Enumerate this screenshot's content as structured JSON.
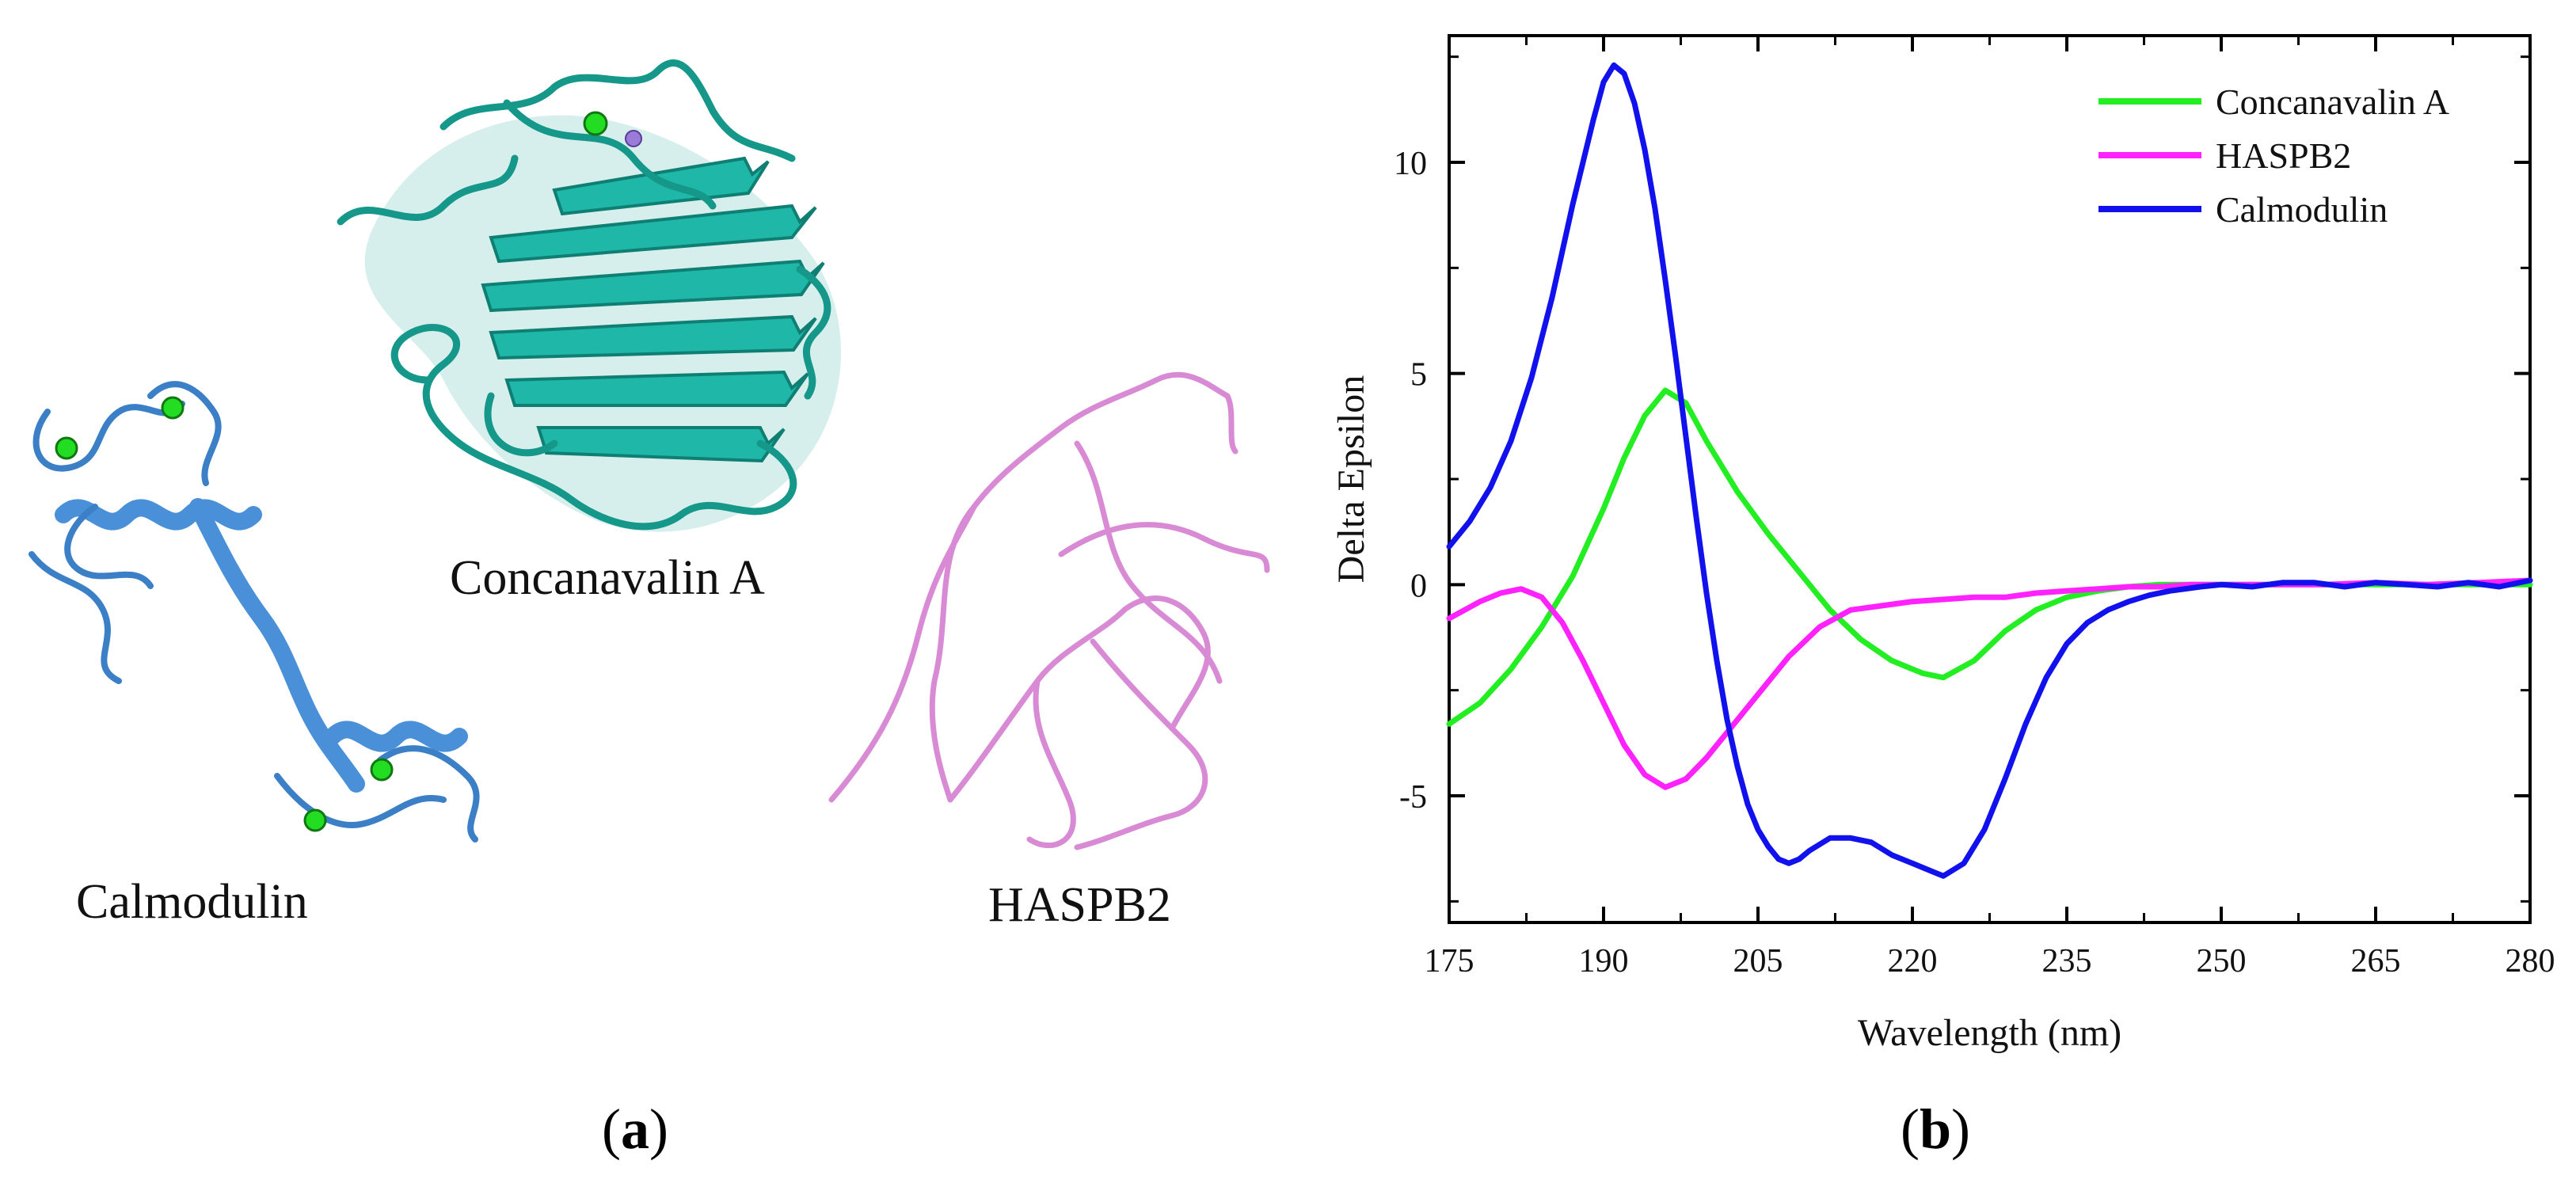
{
  "panel_a": {
    "label": "a",
    "structures": [
      {
        "name": "Concanavalin A",
        "color": "#1aa89a"
      },
      {
        "name": "Calmodulin",
        "color": "#4a90d9"
      },
      {
        "name": "HASPB2",
        "color": "#d98ad4"
      }
    ]
  },
  "panel_b": {
    "label": "b"
  },
  "chart_data": {
    "type": "line",
    "xlabel": "Wavelength (nm)",
    "ylabel": "Delta Epsilon",
    "xlim": [
      175,
      280
    ],
    "ylim": [
      -8,
      13
    ],
    "xticks": [
      175,
      190,
      205,
      220,
      235,
      250,
      265,
      280
    ],
    "yticks": [
      -5,
      0,
      5,
      10
    ],
    "legend": "top-right",
    "grid": false,
    "series": [
      {
        "name": "Concanavalin A",
        "color": "#22ee22",
        "x": [
          175,
          178,
          181,
          184,
          187,
          190,
          192,
          194,
          196,
          198,
          200,
          203,
          206,
          209,
          212,
          215,
          218,
          221,
          223,
          226,
          229,
          232,
          235,
          238,
          241,
          244,
          247,
          250,
          253,
          256,
          259,
          262,
          265,
          268,
          271,
          274,
          277,
          280
        ],
        "y": [
          -3.3,
          -2.8,
          -2.0,
          -1.0,
          0.2,
          1.8,
          3.0,
          4.0,
          4.6,
          4.3,
          3.4,
          2.2,
          1.2,
          0.3,
          -0.6,
          -1.3,
          -1.8,
          -2.1,
          -2.2,
          -1.8,
          -1.1,
          -0.6,
          -0.3,
          -0.15,
          -0.05,
          0.0,
          0.0,
          0.0,
          0.0,
          0.0,
          0.0,
          0.0,
          0.0,
          0.0,
          0.0,
          0.0,
          0.0,
          0.0
        ]
      },
      {
        "name": "HASPB2",
        "color": "#ff22ff",
        "x": [
          175,
          178,
          180,
          182,
          184,
          186,
          188,
          190,
          192,
          194,
          196,
          198,
          200,
          202,
          205,
          208,
          211,
          214,
          217,
          220,
          223,
          226,
          229,
          232,
          235,
          238,
          241,
          244,
          247,
          250,
          255,
          260,
          265,
          270,
          275,
          280
        ],
        "y": [
          -0.8,
          -0.4,
          -0.2,
          -0.1,
          -0.3,
          -0.9,
          -1.8,
          -2.8,
          -3.8,
          -4.5,
          -4.8,
          -4.6,
          -4.1,
          -3.5,
          -2.6,
          -1.7,
          -1.0,
          -0.6,
          -0.5,
          -0.4,
          -0.35,
          -0.3,
          -0.3,
          -0.2,
          -0.15,
          -0.1,
          -0.05,
          -0.05,
          0.0,
          0.0,
          0.0,
          0.0,
          0.05,
          0.0,
          0.05,
          0.1
        ]
      },
      {
        "name": "Calmodulin",
        "color": "#1111ee",
        "x": [
          175,
          177,
          179,
          181,
          183,
          185,
          187,
          189,
          190,
          191,
          192,
          193,
          194,
          195,
          196,
          197,
          198,
          199,
          200,
          201,
          202,
          203,
          204,
          205,
          206,
          207,
          208,
          209,
          210,
          212,
          214,
          216,
          218,
          220,
          222,
          223,
          225,
          227,
          229,
          231,
          233,
          235,
          237,
          239,
          241,
          243,
          245,
          248,
          250,
          253,
          256,
          259,
          262,
          265,
          268,
          271,
          274,
          277,
          280
        ],
        "y": [
          0.9,
          1.5,
          2.3,
          3.4,
          4.9,
          6.8,
          9.0,
          11.0,
          11.9,
          12.3,
          12.1,
          11.4,
          10.3,
          8.9,
          7.2,
          5.4,
          3.5,
          1.6,
          -0.2,
          -1.8,
          -3.2,
          -4.3,
          -5.2,
          -5.8,
          -6.2,
          -6.5,
          -6.6,
          -6.5,
          -6.3,
          -6.0,
          -6.0,
          -6.1,
          -6.4,
          -6.6,
          -6.8,
          -6.9,
          -6.6,
          -5.8,
          -4.6,
          -3.3,
          -2.2,
          -1.4,
          -0.9,
          -0.6,
          -0.4,
          -0.25,
          -0.15,
          -0.05,
          0.0,
          -0.05,
          0.05,
          0.05,
          -0.05,
          0.05,
          0.0,
          -0.05,
          0.05,
          -0.05,
          0.1
        ]
      }
    ]
  }
}
